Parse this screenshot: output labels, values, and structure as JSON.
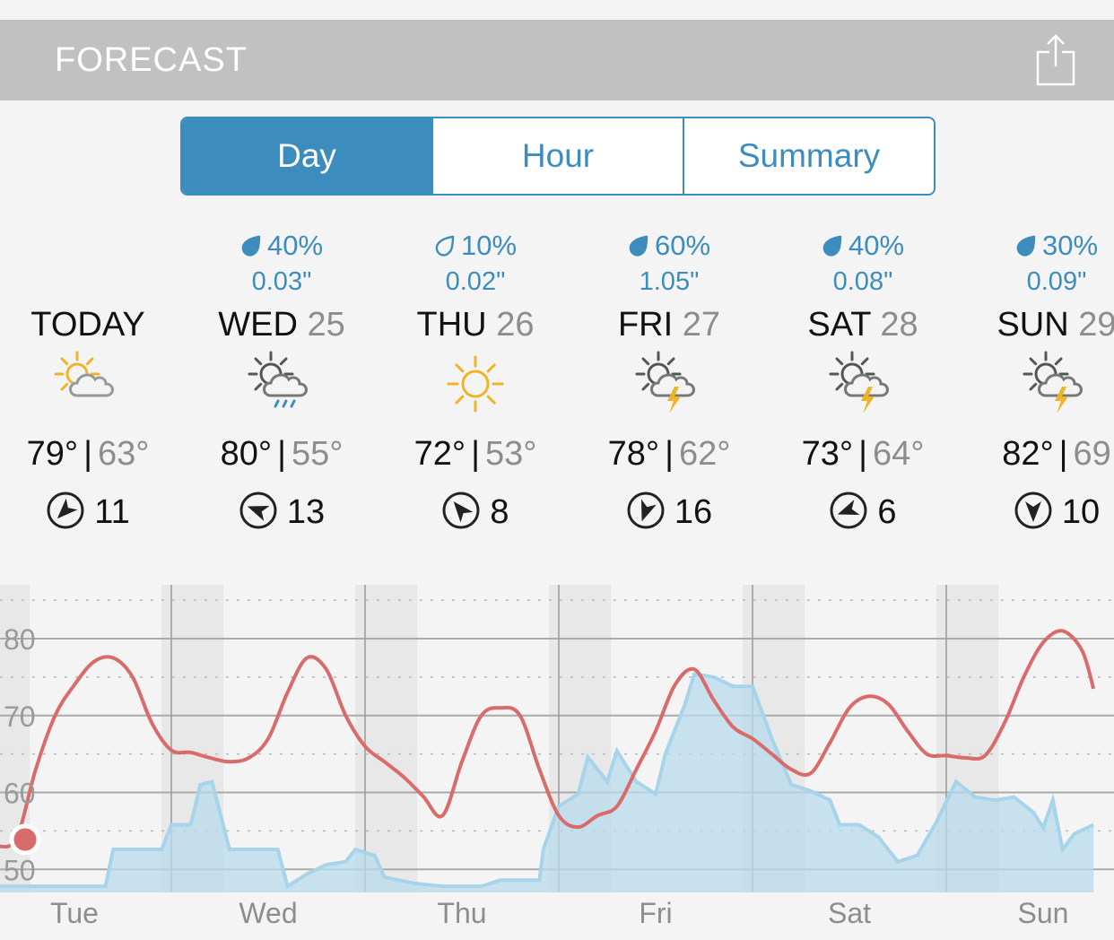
{
  "header": {
    "title": "FORECAST",
    "share_icon": "share-icon"
  },
  "tabs": [
    {
      "label": "Day",
      "active": true
    },
    {
      "label": "Hour",
      "active": false
    },
    {
      "label": "Summary",
      "active": false
    }
  ],
  "colors": {
    "accent": "#3d8cbe",
    "temp_line": "#d96b6b",
    "precip_fill": "#b9dbee",
    "header_bg": "#c1c1c1"
  },
  "days": [
    {
      "name": "TODAY",
      "date": "",
      "precip_pct": "",
      "precip_amt": "",
      "icon": "partly-cloudy-icon",
      "hi": "79°",
      "lo": "63°",
      "wind_speed": "11",
      "wind_dir_deg": 225
    },
    {
      "name": "WED",
      "date": "25",
      "precip_pct": "40%",
      "precip_amt": "0.03\"",
      "icon": "rain-shower-icon",
      "hi": "80°",
      "lo": "55°",
      "wind_speed": "13",
      "wind_dir_deg": 290
    },
    {
      "name": "THU",
      "date": "26",
      "precip_pct": "10%",
      "precip_amt": "0.02\"",
      "precip_outline": true,
      "icon": "sunny-icon",
      "hi": "72°",
      "lo": "53°",
      "wind_speed": "8",
      "wind_dir_deg": 320
    },
    {
      "name": "FRI",
      "date": "27",
      "precip_pct": "60%",
      "precip_amt": "1.05\"",
      "icon": "thunderstorm-icon",
      "hi": "78°",
      "lo": "62°",
      "wind_speed": "16",
      "wind_dir_deg": 200
    },
    {
      "name": "SAT",
      "date": "28",
      "precip_pct": "40%",
      "precip_amt": "0.08\"",
      "icon": "thunderstorm-icon",
      "hi": "73°",
      "lo": "64°",
      "wind_speed": "6",
      "wind_dir_deg": 250
    },
    {
      "name": "SUN",
      "date": "29",
      "precip_pct": "30%",
      "precip_amt": "0.09\"",
      "icon": "thunderstorm-icon",
      "hi": "82°",
      "lo": "69",
      "wind_speed": "10",
      "wind_dir_deg": 180
    }
  ],
  "chart_data": {
    "type": "line",
    "y_ticks": [
      50,
      60,
      70,
      80
    ],
    "ylim": [
      47,
      87
    ],
    "x_labels": [
      "Tue",
      "Wed",
      "Thu",
      "Fri",
      "Sat",
      "Sun"
    ],
    "grid": true,
    "series": [
      {
        "temperature_points": [
          [
            0.1,
            53
          ],
          [
            0.2,
            54
          ],
          [
            0.3,
            63
          ],
          [
            0.4,
            70
          ],
          [
            0.5,
            74
          ],
          [
            0.6,
            77
          ],
          [
            0.7,
            77.5
          ],
          [
            0.8,
            75
          ],
          [
            0.9,
            69
          ],
          [
            1.0,
            65.5
          ],
          [
            1.1,
            65.2
          ],
          [
            1.2,
            64.5
          ],
          [
            1.3,
            64.0
          ],
          [
            1.4,
            64.5
          ],
          [
            1.5,
            67
          ],
          [
            1.6,
            73
          ],
          [
            1.7,
            77.5
          ],
          [
            1.8,
            76
          ],
          [
            1.9,
            70
          ],
          [
            2.0,
            66
          ],
          [
            2.1,
            64
          ],
          [
            2.2,
            62
          ],
          [
            2.3,
            59.5
          ],
          [
            2.4,
            57
          ],
          [
            2.5,
            64
          ],
          [
            2.6,
            70
          ],
          [
            2.7,
            71
          ],
          [
            2.8,
            70
          ],
          [
            2.9,
            63
          ],
          [
            3.0,
            57
          ],
          [
            3.1,
            55.5
          ],
          [
            3.2,
            57
          ],
          [
            3.3,
            58.2
          ],
          [
            3.4,
            63
          ],
          [
            3.5,
            68
          ],
          [
            3.6,
            74
          ],
          [
            3.7,
            76
          ],
          [
            3.8,
            72
          ],
          [
            3.9,
            68.5
          ],
          [
            4.0,
            67
          ],
          [
            4.1,
            65
          ],
          [
            4.2,
            63
          ],
          [
            4.3,
            62.5
          ],
          [
            4.4,
            66.5
          ],
          [
            4.5,
            71
          ],
          [
            4.6,
            72.5
          ],
          [
            4.7,
            71.5
          ],
          [
            4.8,
            68
          ],
          [
            4.9,
            65
          ],
          [
            5.0,
            64.8
          ],
          [
            5.1,
            64.5
          ],
          [
            5.2,
            64.8
          ],
          [
            5.3,
            69
          ],
          [
            5.4,
            75
          ],
          [
            5.5,
            79.5
          ],
          [
            5.6,
            81
          ],
          [
            5.7,
            78.5
          ],
          [
            5.76,
            73.5
          ]
        ]
      },
      {
        "precipitation_points": [
          [
            0.0,
            0.02
          ],
          [
            0.66,
            0.02
          ],
          [
            0.7,
            0.14
          ],
          [
            0.95,
            0.14
          ],
          [
            1.0,
            0.22
          ],
          [
            1.1,
            0.22
          ],
          [
            1.15,
            0.35
          ],
          [
            1.21,
            0.36
          ],
          [
            1.3,
            0.14
          ],
          [
            1.55,
            0.14
          ],
          [
            1.6,
            0.02
          ],
          [
            1.7,
            0.06
          ],
          [
            1.8,
            0.09
          ],
          [
            1.9,
            0.1
          ],
          [
            1.95,
            0.14
          ],
          [
            2.05,
            0.12
          ],
          [
            2.1,
            0.05
          ],
          [
            2.25,
            0.03
          ],
          [
            2.4,
            0.02
          ],
          [
            2.6,
            0.02
          ],
          [
            2.7,
            0.04
          ],
          [
            2.9,
            0.04
          ],
          [
            2.92,
            0.14
          ],
          [
            3.0,
            0.28
          ],
          [
            3.1,
            0.32
          ],
          [
            3.15,
            0.44
          ],
          [
            3.25,
            0.36
          ],
          [
            3.3,
            0.46
          ],
          [
            3.4,
            0.36
          ],
          [
            3.5,
            0.32
          ],
          [
            3.55,
            0.45
          ],
          [
            3.6,
            0.53
          ],
          [
            3.65,
            0.61
          ],
          [
            3.7,
            0.71
          ],
          [
            3.8,
            0.7
          ],
          [
            3.9,
            0.67
          ],
          [
            4.0,
            0.67
          ],
          [
            4.1,
            0.5
          ],
          [
            4.2,
            0.35
          ],
          [
            4.3,
            0.33
          ],
          [
            4.4,
            0.3
          ],
          [
            4.45,
            0.22
          ],
          [
            4.55,
            0.22
          ],
          [
            4.65,
            0.18
          ],
          [
            4.75,
            0.1
          ],
          [
            4.85,
            0.12
          ],
          [
            4.95,
            0.23
          ],
          [
            5.05,
            0.36
          ],
          [
            5.15,
            0.31
          ],
          [
            5.25,
            0.3
          ],
          [
            5.35,
            0.31
          ],
          [
            5.45,
            0.26
          ],
          [
            5.5,
            0.21
          ],
          [
            5.55,
            0.3
          ],
          [
            5.6,
            0.14
          ],
          [
            5.66,
            0.19
          ],
          [
            5.76,
            0.22
          ]
        ]
      }
    ]
  }
}
